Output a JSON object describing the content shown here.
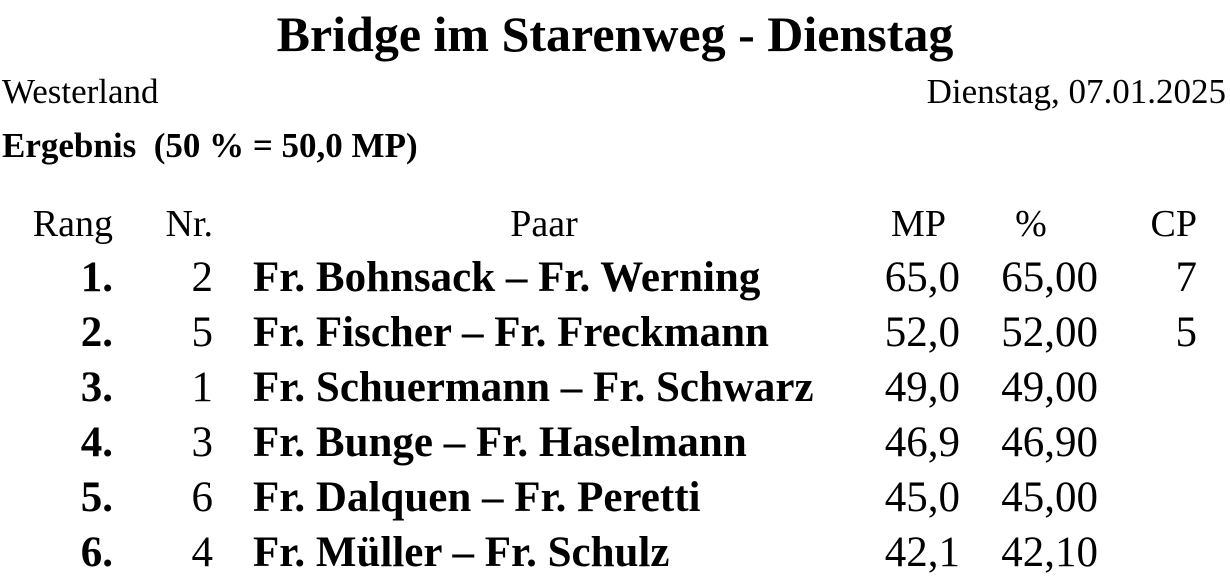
{
  "page": {
    "title": "Bridge im Starenweg - Dienstag",
    "location": "Westerland",
    "date": "Dienstag, 07.01.2025",
    "result_heading": "Ergebnis  (50 % = 50,0 MP)"
  },
  "table": {
    "headers": {
      "rank": "Rang",
      "pair_no": "Nr.",
      "pair": "Paar",
      "mp": "MP",
      "percent": "%",
      "cp": "CP"
    },
    "rows": [
      {
        "rank": "1.",
        "pair_no": "2",
        "pair": "Fr. Bohnsack – Fr. Werning",
        "mp": "65,0",
        "percent": "65,00",
        "cp": "7"
      },
      {
        "rank": "2.",
        "pair_no": "5",
        "pair": "Fr. Fischer – Fr. Freckmann",
        "mp": "52,0",
        "percent": "52,00",
        "cp": "5"
      },
      {
        "rank": "3.",
        "pair_no": "1",
        "pair": "Fr. Schuermann – Fr. Schwarz",
        "mp": "49,0",
        "percent": "49,00",
        "cp": ""
      },
      {
        "rank": "4.",
        "pair_no": "3",
        "pair": "Fr. Bunge – Fr. Haselmann",
        "mp": "46,9",
        "percent": "46,90",
        "cp": ""
      },
      {
        "rank": "5.",
        "pair_no": "6",
        "pair": "Fr. Dalquen – Fr. Peretti",
        "mp": "45,0",
        "percent": "45,00",
        "cp": ""
      },
      {
        "rank": "6.",
        "pair_no": "4",
        "pair": "Fr. Müller – Fr. Schulz",
        "mp": "42,1",
        "percent": "42,10",
        "cp": ""
      }
    ]
  },
  "colors": {
    "text": "#000000",
    "background": "#ffffff"
  }
}
